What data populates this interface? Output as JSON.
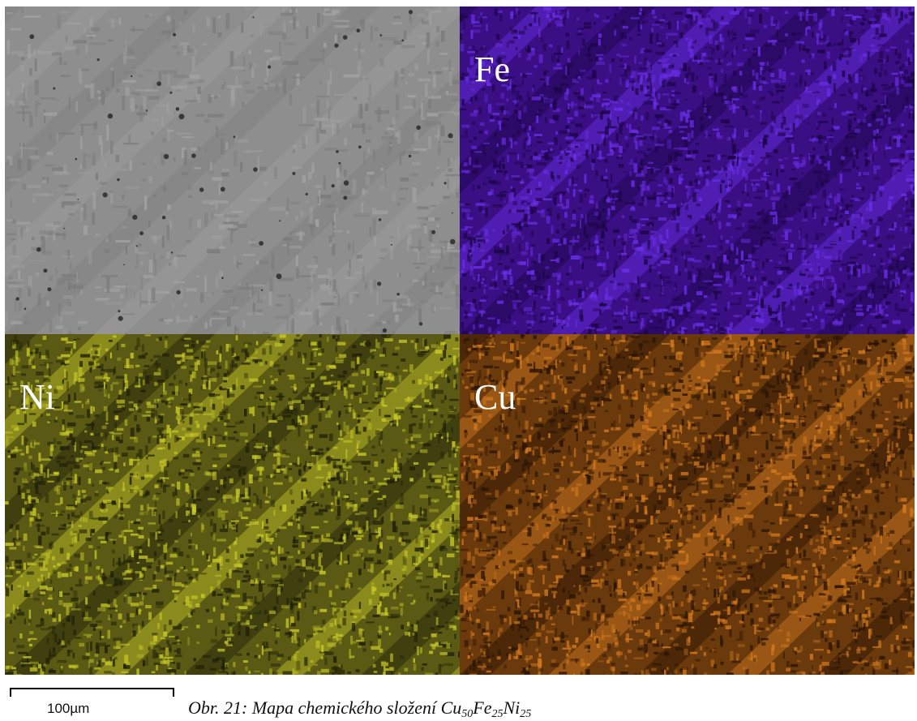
{
  "figure": {
    "panels": [
      {
        "id": "sem",
        "label": "",
        "base_color": "#8e8e8e",
        "dark_color": "#7b7b7b",
        "light_color": "#a2a2a2"
      },
      {
        "id": "fe",
        "label": "Fe",
        "base_color": "#3a0f84",
        "dark_color": "#1c0546",
        "light_color": "#6a2ee8"
      },
      {
        "id": "ni",
        "label": "Ni",
        "base_color": "#5a5a14",
        "dark_color": "#202008",
        "light_color": "#c8c828"
      },
      {
        "id": "cu",
        "label": "Cu",
        "base_color": "#6a3a0c",
        "dark_color": "#2a1404",
        "light_color": "#d47a1e"
      }
    ],
    "scale_bar_label": "100µm",
    "caption": {
      "prefix": "Obr. 21: Mapa chemického složení Cu",
      "sub1": "50",
      "mid1": "Fe",
      "sub2": "25",
      "mid2": "Ni",
      "sub3": "25"
    }
  }
}
